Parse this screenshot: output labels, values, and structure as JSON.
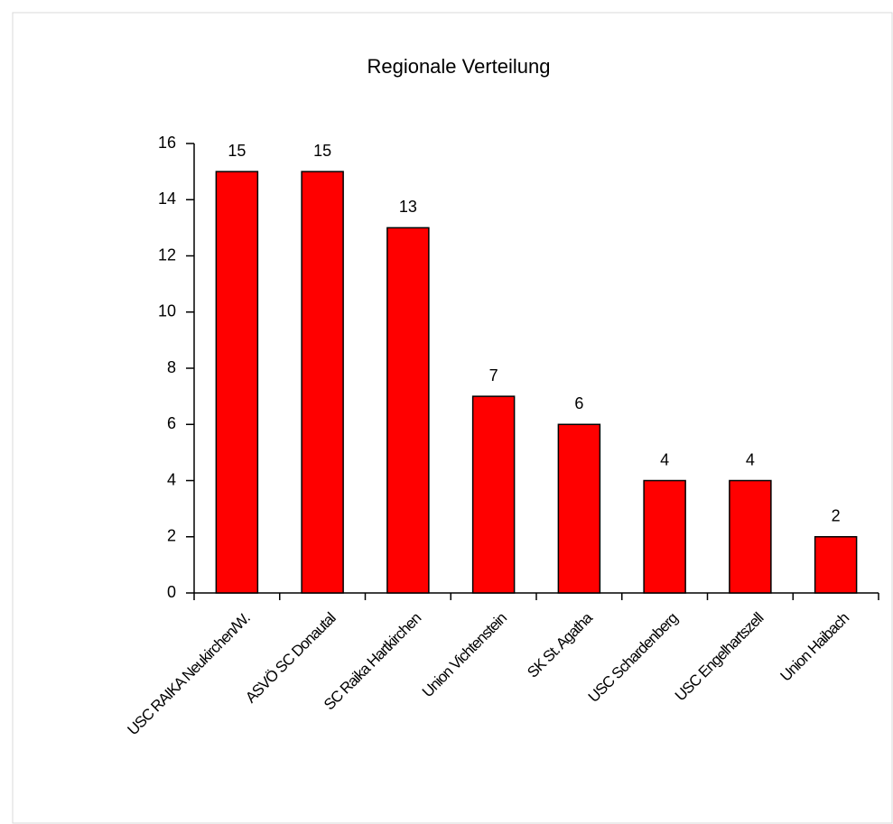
{
  "chart_data": {
    "type": "bar",
    "title": "Regionale Verteilung",
    "categories": [
      "USC RAIKA Neukirchen/W.",
      "ASVÖ SC Donautal",
      "SC Raika Hartkirchen",
      "Union Vichtenstein",
      "SK St. Agatha",
      "USC Schardenberg",
      "USC Engelhartszell",
      "Union Haibach"
    ],
    "values": [
      15,
      15,
      13,
      7,
      6,
      4,
      4,
      2
    ],
    "color": "#ff0000",
    "ylim": [
      0,
      16
    ],
    "yticks": [
      0,
      2,
      4,
      6,
      8,
      10,
      12,
      14,
      16
    ],
    "grid": false
  }
}
